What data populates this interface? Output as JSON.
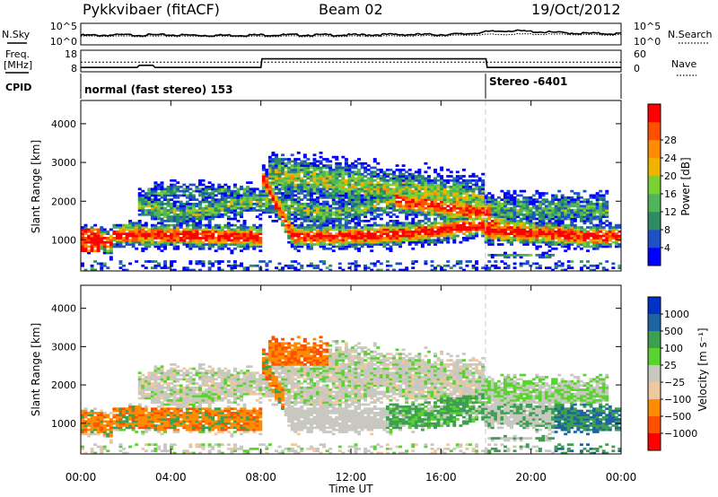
{
  "header": {
    "station": "Pykkvibaer (fitACF)",
    "beam": "Beam 02",
    "date": "19/Oct/2012"
  },
  "side_labels": {
    "nsky": "N.Sky",
    "freq_line1": "Freq.",
    "freq_line2": "[MHz]",
    "cpid": "CPID",
    "nsearch": "N.Search",
    "nave": "Nave"
  },
  "cpid_segments": [
    {
      "label": "normal (fast stereo) 153",
      "start_hour": 0
    },
    {
      "label": "Stereo -6401",
      "start_hour": 18
    }
  ],
  "colors": {
    "power": [
      "#0000ff",
      "#1e50c8",
      "#2d8c64",
      "#50b45a",
      "#7ad232",
      "#f0b400",
      "#ff8c00",
      "#ff5000",
      "#ff0000"
    ],
    "velocity": [
      "#ff0000",
      "#ff5000",
      "#ff8c00",
      "#f0c8a0",
      "#c8c8c0",
      "#5ad232",
      "#3ca050",
      "#1e64a0",
      "#0032c8"
    ]
  },
  "chart_data": [
    {
      "type": "line",
      "panel": "noise",
      "ylabel_left": "N.Sky",
      "ylabel_right": "N.Search",
      "left_ticks": [
        "10^5",
        "10^0"
      ],
      "right_ticks": [
        "10^5",
        "10^0"
      ],
      "x_range_hours": [
        0,
        24
      ],
      "series": [
        {
          "x": [
            0,
            2,
            4,
            6,
            8,
            10,
            12,
            14,
            16,
            17,
            18,
            19,
            20,
            21,
            22,
            24
          ],
          "y": [
            2.2,
            2.3,
            2.3,
            2.2,
            2.3,
            2.3,
            2.3,
            2.4,
            2.4,
            2.5,
            3.0,
            3.3,
            3.1,
            2.9,
            2.7,
            2.6
          ]
        },
        {
          "x": [
            0,
            4,
            8,
            12,
            16,
            18,
            20,
            24
          ],
          "y": [
            2.0,
            2.0,
            2.0,
            2.0,
            2.1,
            2.4,
            2.5,
            2.3
          ]
        }
      ]
    },
    {
      "type": "line",
      "panel": "frequency",
      "ylabel_left": "Freq. [MHz]",
      "ylabel_right": "Nave",
      "left_ticks": [
        "18",
        "8"
      ],
      "right_ticks": [
        "60",
        "0"
      ],
      "x_range_hours": [
        0,
        24
      ],
      "series": [
        {
          "x": [
            0,
            2.5,
            2.6,
            3.2,
            3.3,
            8.0,
            8.05,
            18.0,
            18.05,
            24
          ],
          "y": [
            10.0,
            10.0,
            11.0,
            11.0,
            10.0,
            10.0,
            14.0,
            14.0,
            10.0,
            10.0
          ]
        },
        {
          "x": [
            0,
            24
          ],
          "y": [
            12.5,
            12.5
          ]
        }
      ]
    },
    {
      "type": "heatmap",
      "panel": "power",
      "ylabel": "Slant Range [km]",
      "yticks": [
        1000,
        2000,
        3000,
        4000
      ],
      "ylim": [
        200,
        4600
      ],
      "x_range_hours": [
        0,
        24
      ],
      "colorbar_label": "Power [dB]",
      "colorbar_ticks": [
        4,
        8,
        12,
        16,
        20,
        24,
        28
      ],
      "colorbar_range": [
        0,
        32
      ]
    },
    {
      "type": "heatmap",
      "panel": "velocity",
      "ylabel": "Slant Range [km]",
      "yticks": [
        1000,
        2000,
        3000,
        4000
      ],
      "ylim": [
        200,
        4600
      ],
      "x_range_hours": [
        0,
        24
      ],
      "xticks": [
        "00:00",
        "04:00",
        "08:00",
        "12:00",
        "16:00",
        "20:00",
        "00:00"
      ],
      "xlabel": "Time UT",
      "colorbar_label": "Velocity [m s⁻¹]",
      "colorbar_ticks": [
        "1000",
        "500",
        "100",
        "25",
        "−25",
        "−100",
        "−500",
        "−1000"
      ]
    }
  ]
}
